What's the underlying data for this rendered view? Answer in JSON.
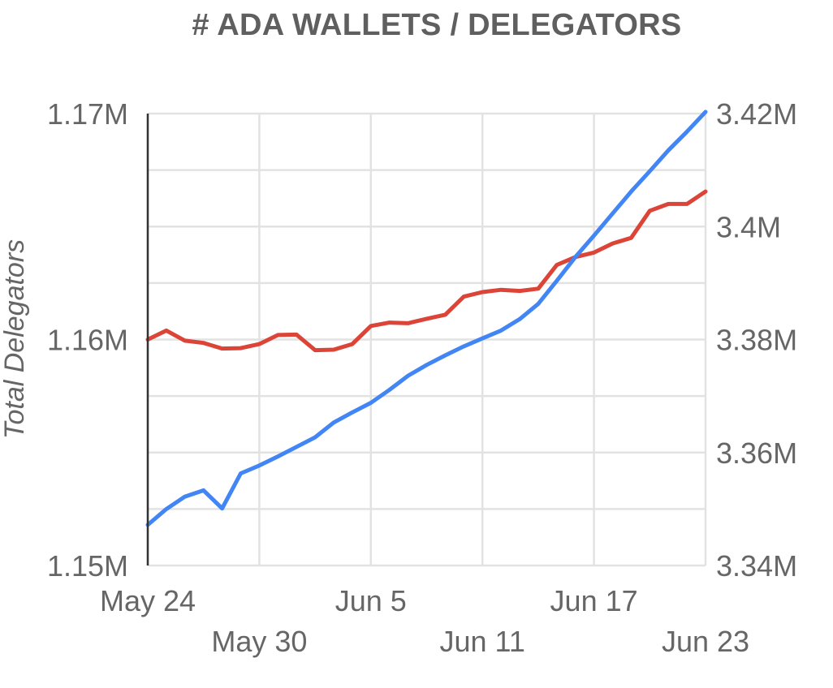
{
  "chart_data": {
    "type": "line",
    "title": "# ADA WALLETS / DELEGATORS",
    "ylabel": "Total Delegators",
    "y2label": "",
    "x_tick_labels": [
      "May 24",
      "May 30",
      "Jun 5",
      "Jun 11",
      "Jun 17",
      "Jun 23"
    ],
    "x_tick_days": [
      0,
      6,
      12,
      18,
      24,
      30
    ],
    "y_left": {
      "lim": [
        1150000,
        1170000
      ],
      "ticks": [
        1150000,
        1160000,
        1170000
      ],
      "tick_labels": [
        "1.15M",
        "1.16M",
        "1.17M"
      ]
    },
    "y_right": {
      "lim": [
        3340000,
        3420000
      ],
      "ticks": [
        3340000,
        3360000,
        3380000,
        3400000,
        3420000
      ],
      "tick_labels": [
        "3.34M",
        "3.36M",
        "3.38M",
        "3.4M",
        "3.42M"
      ]
    },
    "grid": true,
    "x": [
      "May 24",
      "May 25",
      "May 26",
      "May 27",
      "May 28",
      "May 29",
      "May 30",
      "May 31",
      "Jun 1",
      "Jun 2",
      "Jun 3",
      "Jun 4",
      "Jun 5",
      "Jun 6",
      "Jun 7",
      "Jun 8",
      "Jun 9",
      "Jun 10",
      "Jun 11",
      "Jun 12",
      "Jun 13",
      "Jun 14",
      "Jun 15",
      "Jun 16",
      "Jun 17",
      "Jun 18",
      "Jun 19",
      "Jun 20",
      "Jun 21",
      "Jun 22",
      "Jun 23"
    ],
    "series": [
      {
        "axis": "left",
        "color": "#db4437",
        "values": [
          1160000,
          1160400,
          1159950,
          1159850,
          1159600,
          1159620,
          1159800,
          1160200,
          1160220,
          1159530,
          1159550,
          1159800,
          1160600,
          1160750,
          1160720,
          1160920,
          1161100,
          1161900,
          1162100,
          1162200,
          1162150,
          1162250,
          1163300,
          1163650,
          1163850,
          1164250,
          1164500,
          1165700,
          1166000,
          1166000,
          1166550
        ]
      },
      {
        "axis": "right",
        "color": "#4285f4",
        "values": [
          3347200,
          3350000,
          3352200,
          3353300,
          3350100,
          3356300,
          3357700,
          3359300,
          3361000,
          3362700,
          3365300,
          3367100,
          3368800,
          3371100,
          3373600,
          3375500,
          3377200,
          3378800,
          3380200,
          3381600,
          3383600,
          3386300,
          3390400,
          3394600,
          3398400,
          3402300,
          3406200,
          3409800,
          3413500,
          3416800,
          3420300
        ]
      }
    ]
  }
}
